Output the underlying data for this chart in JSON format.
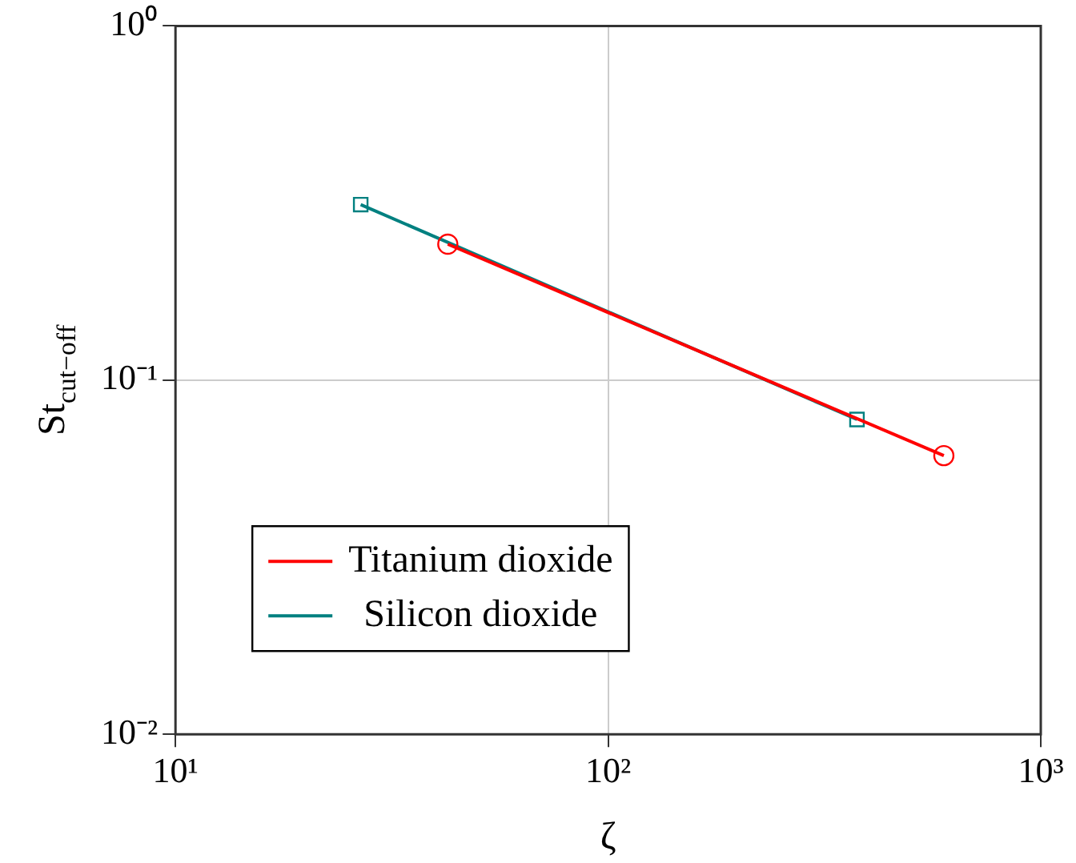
{
  "chart_data": {
    "type": "line",
    "xlabel": "ζ",
    "ylabel": "St$_{cut−off}$",
    "log": "xy",
    "grid": true,
    "legend": "bottom left",
    "xlim": [
      10,
      1000
    ],
    "xticks": [
      {
        "value": 10,
        "label": "10¹"
      },
      {
        "value": 100,
        "label": "10²"
      },
      {
        "value": 1000,
        "label": "10³"
      }
    ],
    "ylim": [
      0.01,
      1
    ],
    "yticks": [
      {
        "value": 0.01,
        "label": "10⁻²"
      },
      {
        "value": 0.1,
        "label": "10⁻¹"
      },
      {
        "value": 1,
        "label": "10⁰"
      }
    ],
    "series": [
      {
        "name": "Titanium dioxide",
        "color": "#ff0000",
        "marker": "circle",
        "x": [
          42.6,
          597
        ],
        "values": [
          0.242,
          0.0612
        ]
      },
      {
        "name": "Silicon dioxide",
        "color": "#008080",
        "marker": "square",
        "x": [
          26.8,
          376
        ],
        "values": [
          0.313,
          0.0774
        ]
      }
    ]
  }
}
